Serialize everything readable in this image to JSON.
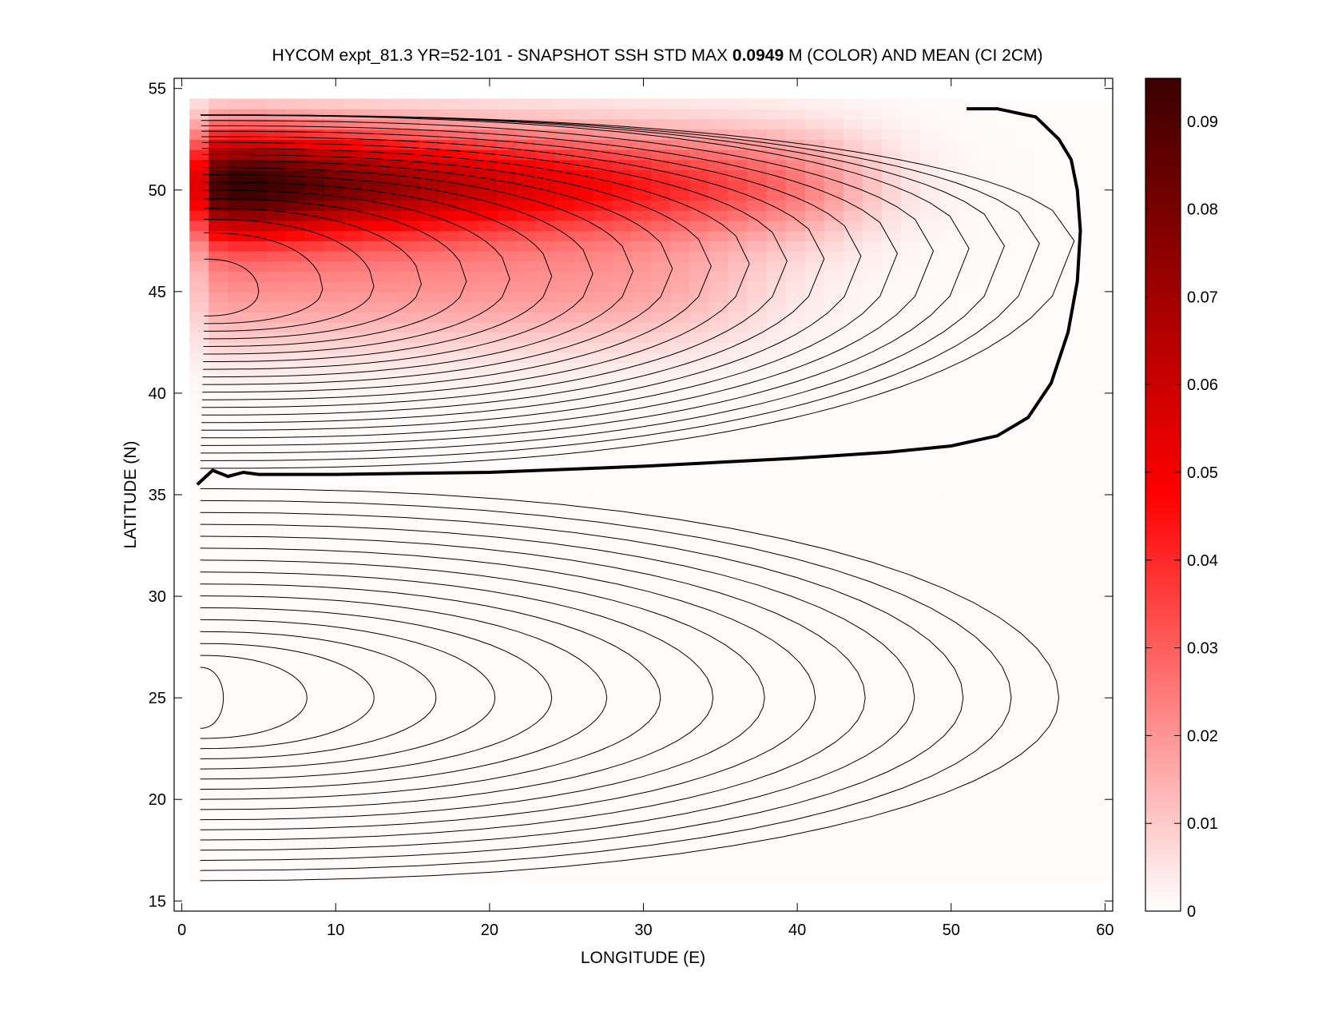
{
  "chart_data": {
    "type": "heatmap",
    "title": {
      "prefix": "HYCOM expt_81.3 YR=52-101 - SNAPSHOT SSH STD MAX ",
      "value": "0.0949",
      "suffix": " M (COLOR) AND MEAN (CI 2CM)"
    },
    "xlabel": "LONGITUDE (E)",
    "ylabel": "LATITUDE (N)",
    "xlim": [
      -0.5,
      60.5
    ],
    "ylim": [
      14.5,
      55.5
    ],
    "x_ticks": [
      "0",
      "10",
      "20",
      "30",
      "40",
      "50",
      "60"
    ],
    "x_tick_values": [
      0,
      10,
      20,
      30,
      40,
      50,
      60
    ],
    "y_ticks": [
      "15",
      "20",
      "25",
      "30",
      "35",
      "40",
      "45",
      "50",
      "55"
    ],
    "y_tick_values": [
      15,
      20,
      25,
      30,
      35,
      40,
      45,
      50,
      55
    ],
    "colorbar": {
      "range": [
        0,
        0.0949
      ],
      "ticks": [
        "0",
        "0.01",
        "0.02",
        "0.03",
        "0.04",
        "0.05",
        "0.06",
        "0.07",
        "0.08",
        "0.09"
      ],
      "tick_values": [
        0,
        0.01,
        0.02,
        0.03,
        0.04,
        0.05,
        0.06,
        0.07,
        0.08,
        0.09
      ],
      "colormap": [
        "#ffffff",
        "#ff0000",
        "#3a0000"
      ]
    },
    "ssh_std_field": {
      "units": "m",
      "max": 0.0949,
      "max_location": {
        "lon": 6,
        "lat": 50
      },
      "domain": {
        "lon": [
          0.5,
          59.5
        ],
        "lat": [
          16,
          54.5
        ]
      }
    },
    "mean_ssh_contours": {
      "interval_cm": 2,
      "zero_contour": [
        [
          1,
          35.5
        ],
        [
          2,
          36.2
        ],
        [
          3,
          35.9
        ],
        [
          4,
          36.1
        ],
        [
          5,
          36
        ],
        [
          10,
          36
        ],
        [
          20,
          36.1
        ],
        [
          30,
          36.4
        ],
        [
          40,
          36.8
        ],
        [
          46,
          37.1
        ],
        [
          50,
          37.4
        ],
        [
          53,
          37.9
        ],
        [
          55,
          38.8
        ],
        [
          56.5,
          40.5
        ],
        [
          57.6,
          43
        ],
        [
          58.2,
          45.5
        ],
        [
          58.4,
          48
        ],
        [
          58.2,
          50
        ],
        [
          57.8,
          51.5
        ],
        [
          57,
          52.5
        ],
        [
          55.5,
          53.6
        ],
        [
          53,
          54
        ],
        [
          51,
          54
        ]
      ],
      "subpolar_gyre": {
        "center": {
          "lon": 4,
          "lat": 45
        },
        "count": 21,
        "lat_range": [
          36.3,
          54
        ],
        "tip_range_lon": [
          5,
          58
        ],
        "north_lat": 54
      },
      "subtropical_gyre": {
        "center": {
          "lon": 2.2,
          "lat": 25
        },
        "count": 16,
        "lat_range": [
          16,
          35.3
        ],
        "tip_range_lon": [
          2.7,
          57
        ]
      }
    }
  }
}
